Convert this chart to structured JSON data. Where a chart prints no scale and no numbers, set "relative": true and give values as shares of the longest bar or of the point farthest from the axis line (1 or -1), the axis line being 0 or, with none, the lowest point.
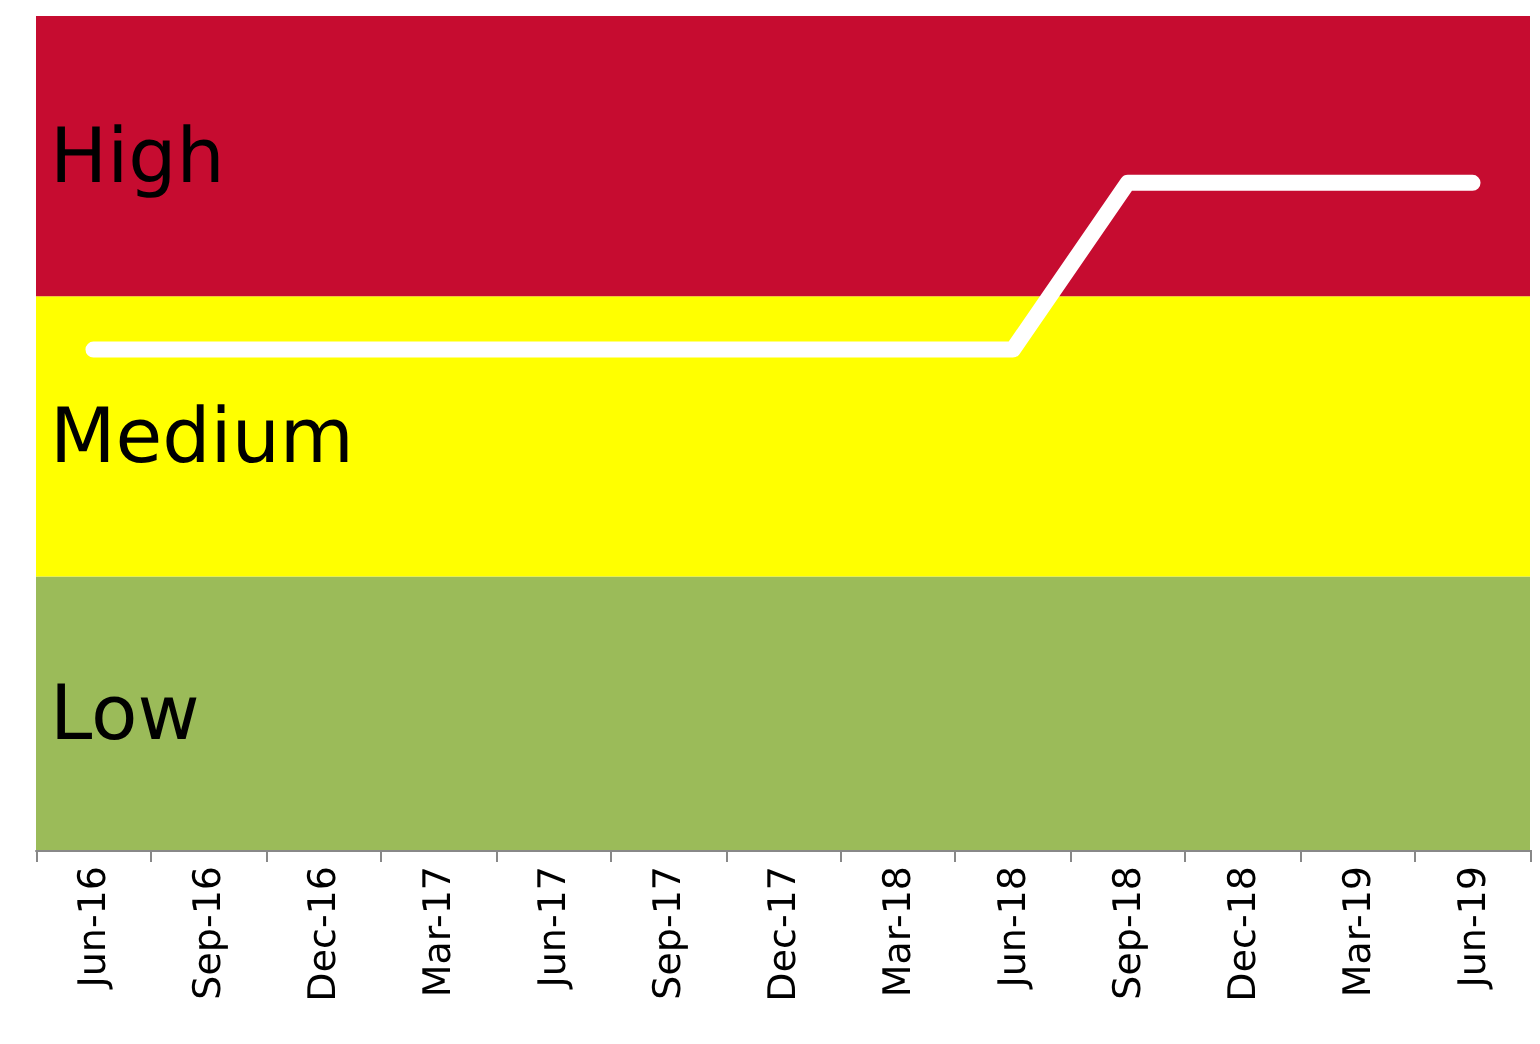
{
  "chart_data": {
    "type": "line",
    "relative": true,
    "categories": [
      "Jun-16",
      "Sep-16",
      "Dec-16",
      "Mar-17",
      "Jun-17",
      "Sep-17",
      "Dec-17",
      "Mar-18",
      "Jun-18",
      "Sep-18",
      "Dec-18",
      "Mar-19",
      "Jun-19"
    ],
    "series": [
      {
        "color": "#ffffff",
        "values": [
          0.75,
          0.75,
          0.75,
          0.75,
          0.75,
          0.75,
          0.75,
          0.75,
          0.75,
          1,
          1,
          1,
          1
        ]
      }
    ],
    "bands": [
      {
        "axis": "y",
        "from": 0,
        "to": 0.41,
        "label": "Low",
        "color": "#9bbb59"
      },
      {
        "axis": "y",
        "from": 0.41,
        "to": 0.83,
        "label": "Medium",
        "color": "#ffff00"
      },
      {
        "axis": "y",
        "from": 0.83,
        "to": 1.25,
        "label": "High",
        "color": "#c60c30"
      }
    ],
    "grid": false,
    "marker": "none",
    "line_style": "solid"
  }
}
